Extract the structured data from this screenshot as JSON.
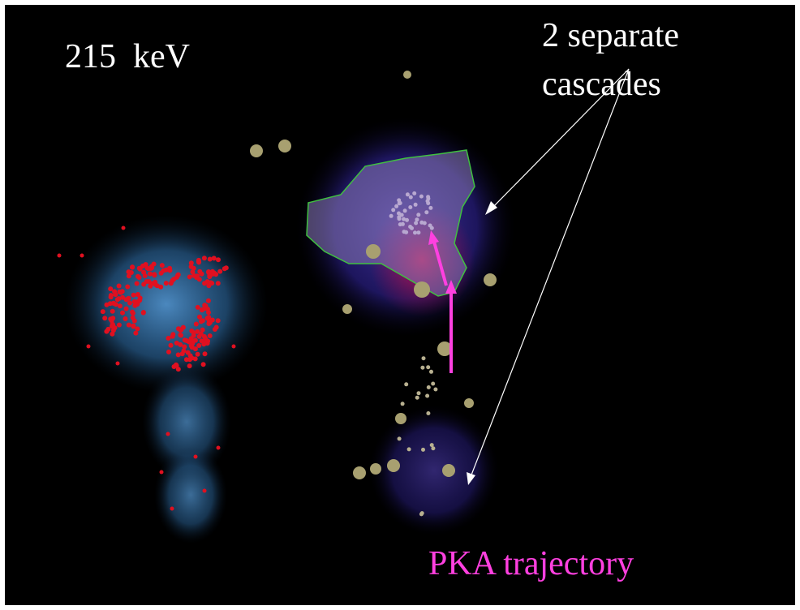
{
  "slide": {
    "energy_label": "215  keV",
    "annotation": [
      "2 separate",
      "cascades"
    ],
    "trajectory_label": "PKA trajectory"
  }
}
